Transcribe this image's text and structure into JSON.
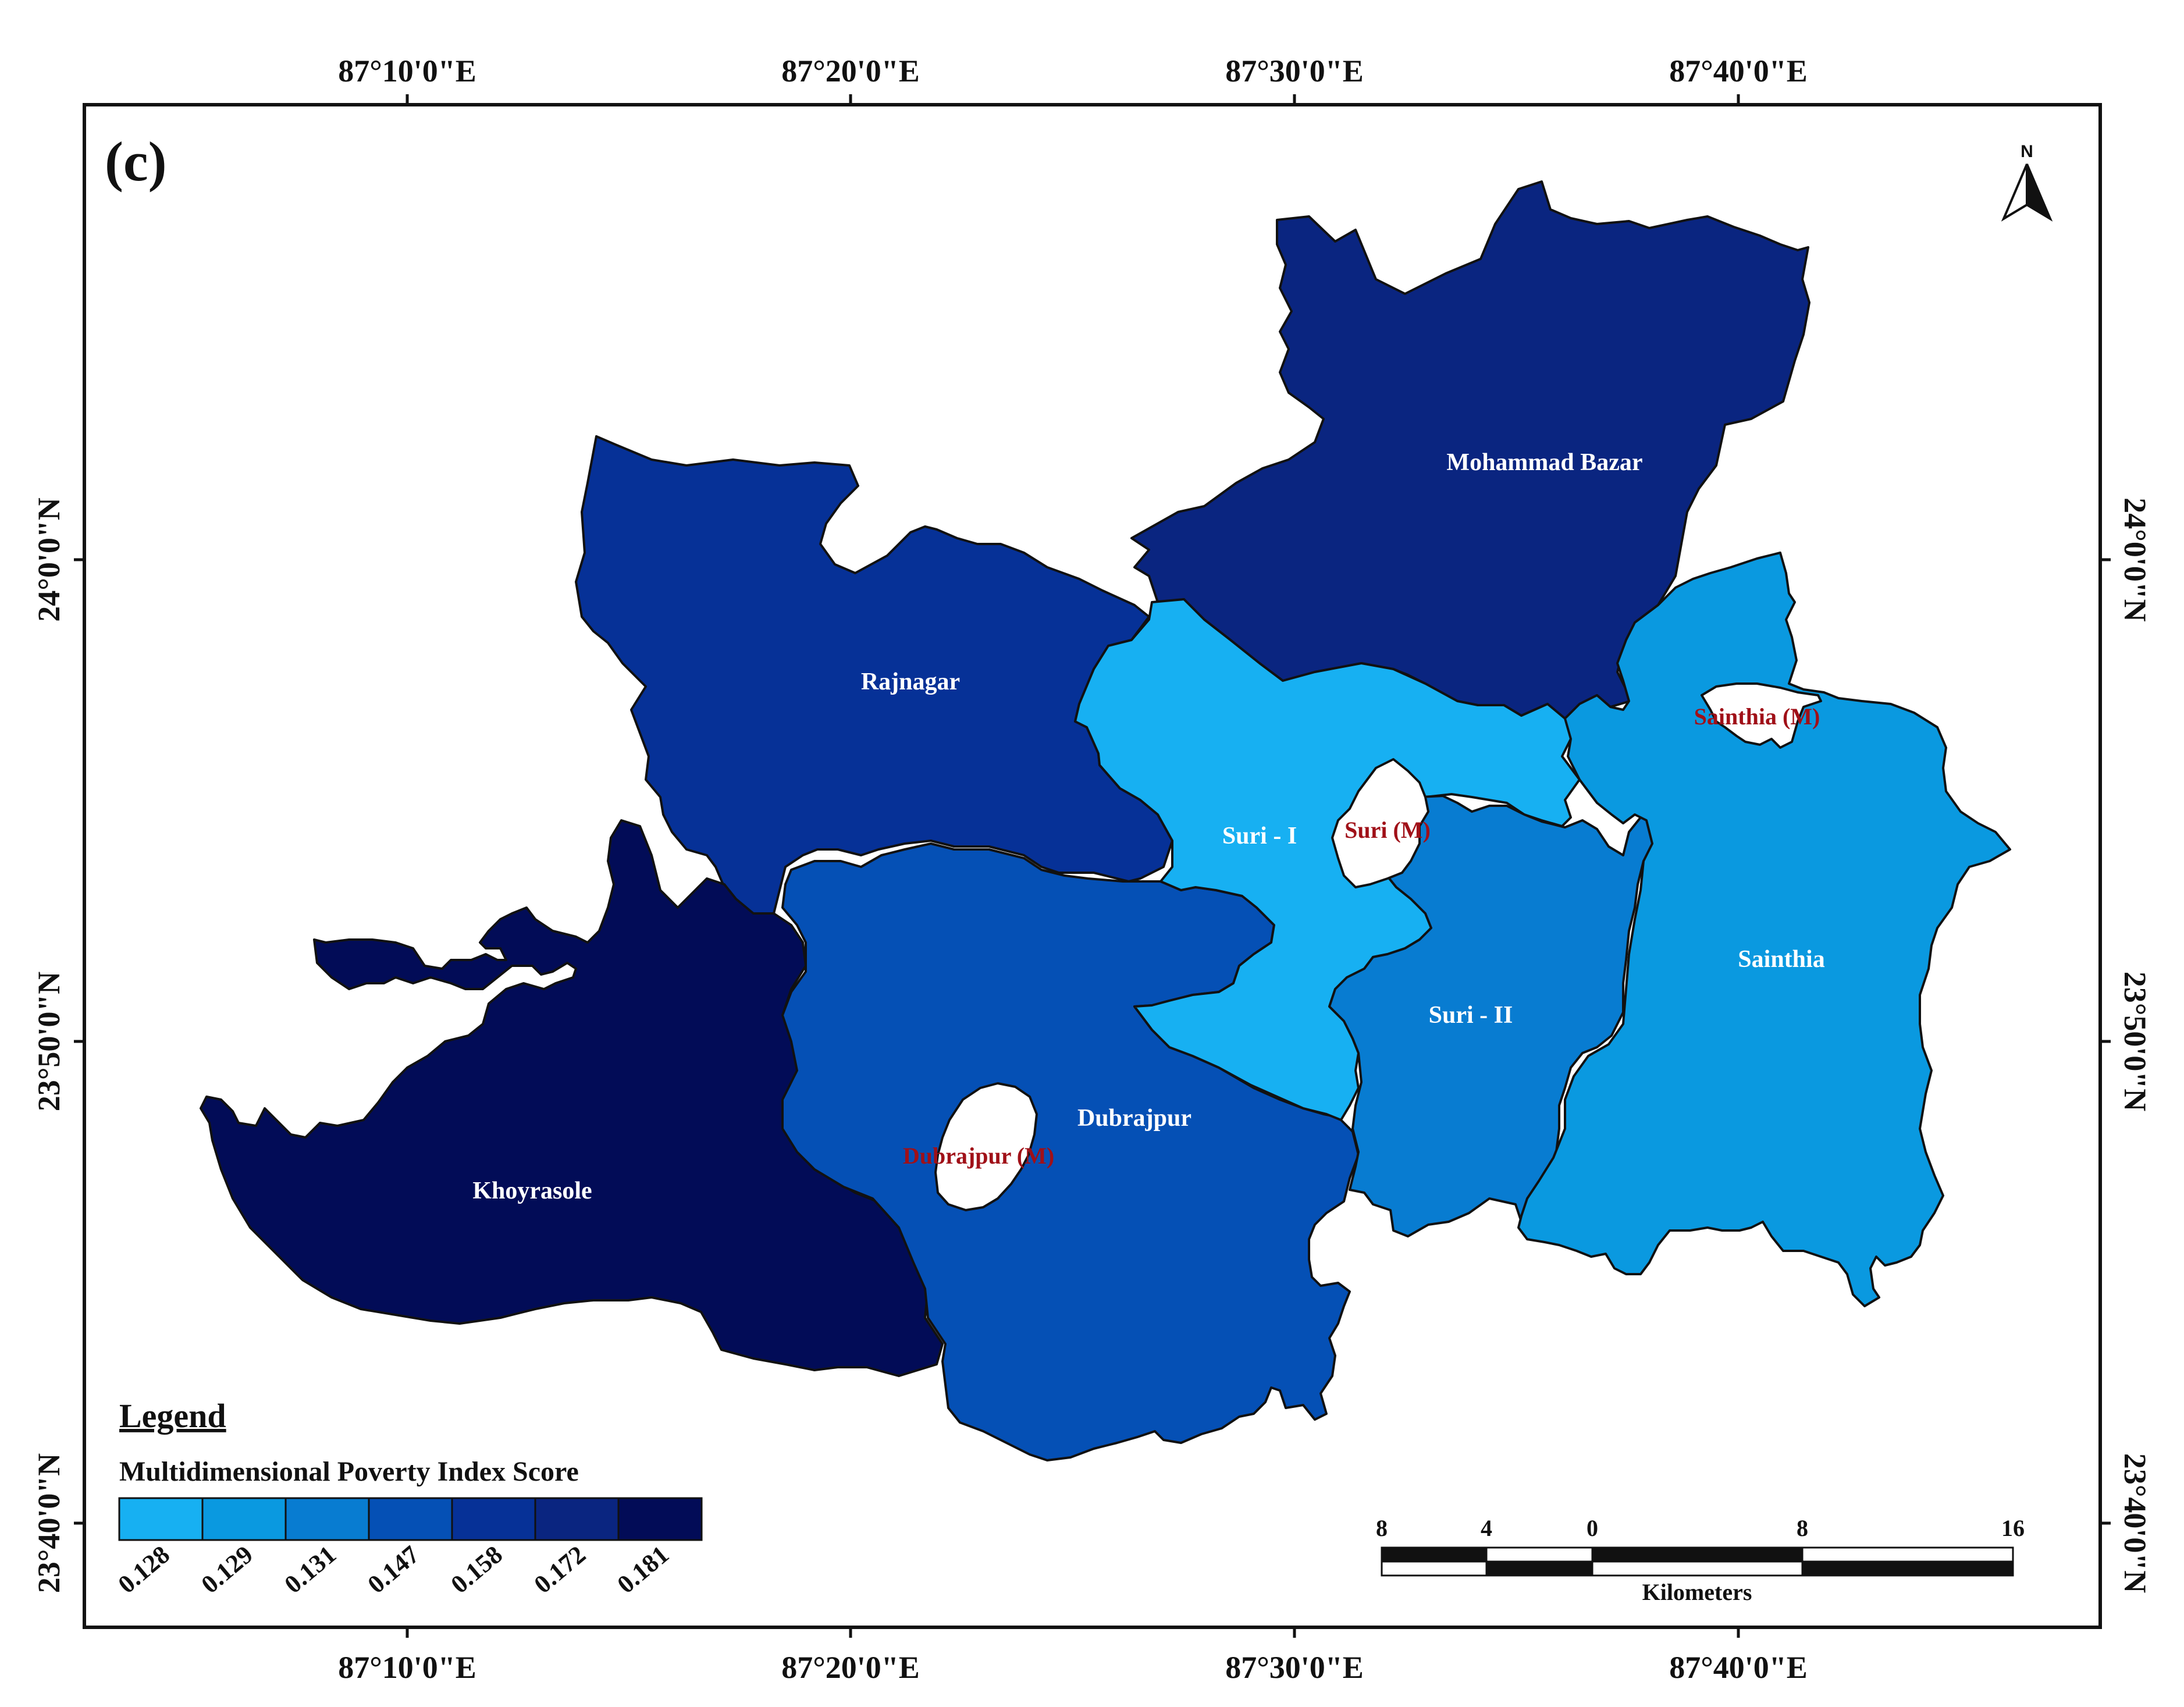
{
  "panel_label": "(c)",
  "north_label": "N",
  "top_ticks": [
    "87°10'0\"E",
    "87°20'0\"E",
    "87°30'0\"E",
    "87°40'0\"E"
  ],
  "bottom_ticks": [
    "87°10'0\"E",
    "87°20'0\"E",
    "87°30'0\"E",
    "87°40'0\"E"
  ],
  "left_ticks": [
    "24°0'0\"N",
    "23°50'0\"N",
    "23°40'0\"N"
  ],
  "right_ticks": [
    "24°0'0\"N",
    "23°50'0\"N",
    "23°40'0\"N"
  ],
  "districts": [
    {
      "name": "Mohammad Bazar",
      "score": 0.172,
      "color": "#0a2580"
    },
    {
      "name": "Rajnagar",
      "score": 0.158,
      "color": "#063197"
    },
    {
      "name": "Suri - I",
      "score": 0.128,
      "color": "#17b0f2"
    },
    {
      "name": "Sainthia",
      "score": 0.129,
      "color": "#0a99e0"
    },
    {
      "name": "Suri - II",
      "score": 0.131,
      "color": "#087cd1"
    },
    {
      "name": "Dubrajpur",
      "score": 0.147,
      "color": "#0550b5"
    },
    {
      "name": "Khoyrasole",
      "score": 0.181,
      "color": "#020c57"
    }
  ],
  "municipalities": [
    "Sainthia (M)",
    "Suri (M)",
    "Dubrajpur (M)"
  ],
  "legend": {
    "title": "Legend",
    "subtitle": "Multidimensional Poverty Index Score",
    "classes": [
      {
        "label": "0.128",
        "color": "#17b0f2"
      },
      {
        "label": "0.129",
        "color": "#0a99e0"
      },
      {
        "label": "0.131",
        "color": "#087cd1"
      },
      {
        "label": "0.147",
        "color": "#0550b5"
      },
      {
        "label": "0.158",
        "color": "#063197"
      },
      {
        "label": "0.172",
        "color": "#0a2580"
      },
      {
        "label": "0.181",
        "color": "#020c57"
      }
    ]
  },
  "scale_bar": {
    "labels": [
      "8",
      "4",
      "0",
      "8",
      "16"
    ],
    "unit": "Kilometers"
  }
}
